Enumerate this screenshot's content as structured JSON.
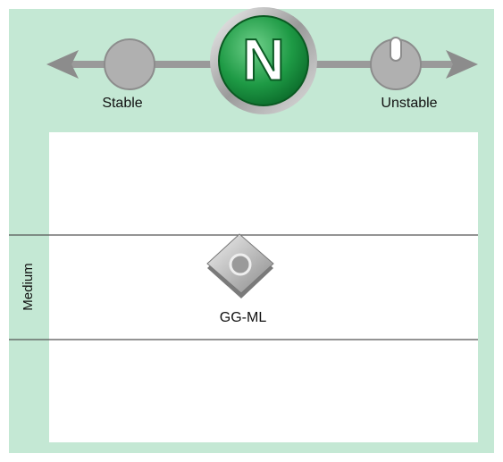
{
  "scale": {
    "left_label": "Stable",
    "center_badge": "N",
    "right_label": "Unstable"
  },
  "rows": [
    {
      "label": "Medium",
      "item": {
        "name": "GG-ML"
      }
    }
  ]
}
